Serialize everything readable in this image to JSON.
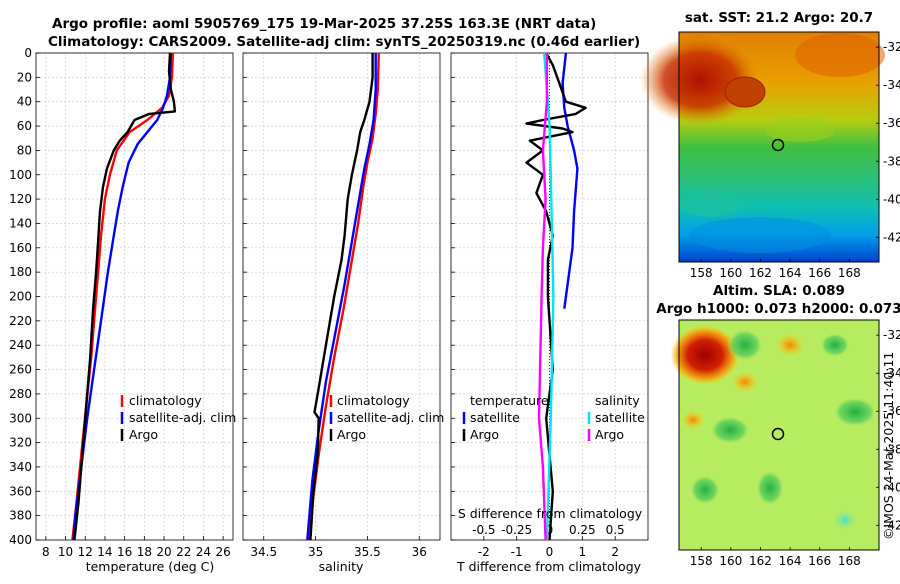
{
  "header": {
    "title_line1": "Argo profile: aoml 5905769_175 19-Mar-2025 37.25S 163.3E (NRT data)",
    "title_line2": "Climatology: CARS2009. Satellite-adj clim: synTS_20250319.nc (0.46d earlier)"
  },
  "colors": {
    "climatology": "#ff0000",
    "satellite": "#0000ff",
    "argo": "#000000",
    "salinity_satellite": "#00e5ee",
    "salinity_argo": "#ff00ff"
  },
  "chart_data": [
    {
      "type": "line",
      "id": "temperature",
      "xlabel": "temperature (deg C)",
      "ylabel": "",
      "xlim": [
        7,
        27
      ],
      "ylim": [
        0,
        400
      ],
      "y_reversed": true,
      "xticks": [
        8,
        10,
        12,
        14,
        16,
        18,
        20,
        22,
        24,
        26
      ],
      "yticks": [
        0,
        20,
        40,
        60,
        80,
        100,
        120,
        140,
        160,
        180,
        200,
        220,
        240,
        260,
        280,
        300,
        320,
        340,
        360,
        380,
        400
      ],
      "grid": true,
      "legend": [
        "climatology",
        "satellite-adj. clim",
        "Argo"
      ],
      "legend_placement": "middle-right",
      "series": [
        {
          "name": "climatology",
          "color": "#ff0000",
          "points": [
            [
              20.9,
              0
            ],
            [
              20.8,
              20
            ],
            [
              20.5,
              35
            ],
            [
              19.8,
              45
            ],
            [
              18.3,
              55
            ],
            [
              16.5,
              65
            ],
            [
              15.2,
              80
            ],
            [
              14.5,
              100
            ],
            [
              14.0,
              120
            ],
            [
              13.6,
              150
            ],
            [
              13.3,
              180
            ],
            [
              13.0,
              210
            ],
            [
              12.6,
              250
            ],
            [
              12.1,
              290
            ],
            [
              11.6,
              330
            ],
            [
              11.1,
              370
            ],
            [
              10.7,
              400
            ]
          ]
        },
        {
          "name": "satellite-adj. clim",
          "color": "#0000ff",
          "points": [
            [
              20.7,
              0
            ],
            [
              20.6,
              20
            ],
            [
              20.3,
              35
            ],
            [
              19.9,
              45
            ],
            [
              19.3,
              55
            ],
            [
              18.3,
              65
            ],
            [
              17.3,
              75
            ],
            [
              16.4,
              90
            ],
            [
              15.8,
              110
            ],
            [
              15.3,
              130
            ],
            [
              14.9,
              150
            ],
            [
              14.3,
              180
            ],
            [
              13.6,
              220
            ],
            [
              12.9,
              260
            ],
            [
              12.2,
              300
            ],
            [
              11.6,
              340
            ],
            [
              11.0,
              380
            ],
            [
              10.8,
              400
            ]
          ]
        },
        {
          "name": "Argo",
          "color": "#000000",
          "points": [
            [
              20.6,
              0
            ],
            [
              20.5,
              15
            ],
            [
              20.7,
              30
            ],
            [
              21.0,
              40
            ],
            [
              21.1,
              48
            ],
            [
              18.5,
              50
            ],
            [
              17.0,
              55
            ],
            [
              16.3,
              65
            ],
            [
              15.5,
              72
            ],
            [
              14.9,
              80
            ],
            [
              14.2,
              95
            ],
            [
              13.8,
              110
            ],
            [
              13.5,
              130
            ],
            [
              13.3,
              155
            ],
            [
              13.1,
              180
            ],
            [
              12.8,
              210
            ],
            [
              12.5,
              250
            ],
            [
              12.1,
              290
            ],
            [
              11.7,
              330
            ],
            [
              11.3,
              370
            ],
            [
              10.9,
              400
            ]
          ]
        }
      ]
    },
    {
      "type": "line",
      "id": "salinity",
      "xlabel": "salinity",
      "ylabel": "",
      "xlim": [
        34.3,
        36.2
      ],
      "ylim": [
        0,
        400
      ],
      "y_reversed": true,
      "xticks": [
        34.5,
        35,
        35.5,
        36
      ],
      "xtick_labels": [
        "34.5",
        "35",
        "35.5",
        "36"
      ],
      "grid": true,
      "legend": [
        "climatology",
        "satellite-adj. clim",
        "Argo"
      ],
      "legend_placement": "middle-right",
      "series": [
        {
          "name": "climatology",
          "color": "#ff0000",
          "points": [
            [
              35.61,
              0
            ],
            [
              35.6,
              30
            ],
            [
              35.58,
              50
            ],
            [
              35.55,
              70
            ],
            [
              35.5,
              90
            ],
            [
              35.46,
              110
            ],
            [
              35.41,
              140
            ],
            [
              35.35,
              170
            ],
            [
              35.27,
              210
            ],
            [
              35.18,
              250
            ],
            [
              35.1,
              290
            ],
            [
              35.03,
              330
            ],
            [
              34.97,
              370
            ],
            [
              34.94,
              400
            ]
          ]
        },
        {
          "name": "satellite-adj. clim",
          "color": "#0000ff",
          "points": [
            [
              35.58,
              0
            ],
            [
              35.58,
              30
            ],
            [
              35.56,
              55
            ],
            [
              35.52,
              75
            ],
            [
              35.47,
              95
            ],
            [
              35.42,
              120
            ],
            [
              35.36,
              150
            ],
            [
              35.28,
              190
            ],
            [
              35.19,
              230
            ],
            [
              35.1,
              270
            ],
            [
              35.03,
              310
            ],
            [
              34.97,
              350
            ],
            [
              34.93,
              390
            ],
            [
              34.92,
              400
            ]
          ]
        },
        {
          "name": "Argo",
          "color": "#000000",
          "points": [
            [
              35.55,
              0
            ],
            [
              35.55,
              20
            ],
            [
              35.52,
              40
            ],
            [
              35.47,
              55
            ],
            [
              35.43,
              65
            ],
            [
              35.4,
              80
            ],
            [
              35.35,
              100
            ],
            [
              35.31,
              120
            ],
            [
              35.28,
              150
            ],
            [
              35.25,
              170
            ],
            [
              35.18,
              200
            ],
            [
              35.1,
              240
            ],
            [
              35.06,
              260
            ],
            [
              35.02,
              280
            ],
            [
              34.99,
              295
            ],
            [
              35.03,
              300
            ],
            [
              35.02,
              330
            ],
            [
              34.98,
              360
            ],
            [
              34.95,
              400
            ]
          ]
        }
      ]
    },
    {
      "type": "line",
      "id": "difference",
      "xlabel": "T difference from climatology",
      "x2label": "S difference from climatology",
      "xlim": [
        -3,
        3
      ],
      "x2lim": [
        -0.75,
        0.75
      ],
      "ylim": [
        0,
        400
      ],
      "y_reversed": true,
      "xticks": [
        -2,
        -1,
        0,
        1,
        2
      ],
      "xtick_labels": [
        "-2",
        "-1",
        "0",
        "1",
        "2"
      ],
      "x2ticks": [
        -0.5,
        -0.25,
        0,
        0.25,
        0.5
      ],
      "x2tick_labels": [
        "-0.5",
        "-0.25",
        "0",
        "0.25",
        "0.5"
      ],
      "grid": true,
      "legend_temperature_title": "temperature",
      "legend_salinity_title": "salinity",
      "legend": [
        "satellite",
        "Argo",
        "satellite",
        "Argo"
      ],
      "series": [
        {
          "name": "temperature satellite",
          "axis": "T",
          "color": "#0000ff",
          "points": [
            [
              0.5,
              0
            ],
            [
              0.4,
              25
            ],
            [
              0.45,
              45
            ],
            [
              0.55,
              60
            ],
            [
              0.75,
              80
            ],
            [
              0.85,
              95
            ],
            [
              0.75,
              130
            ],
            [
              0.7,
              160
            ],
            [
              0.55,
              190
            ],
            [
              0.45,
              210
            ]
          ]
        },
        {
          "name": "temperature Argo",
          "axis": "T",
          "color": "#000000",
          "points": [
            [
              -0.1,
              0
            ],
            [
              0.1,
              10
            ],
            [
              0.3,
              25
            ],
            [
              0.5,
              40
            ],
            [
              1.1,
              45
            ],
            [
              0.8,
              50
            ],
            [
              -0.2,
              55
            ],
            [
              -0.7,
              58
            ],
            [
              0.4,
              62
            ],
            [
              0.7,
              65
            ],
            [
              -0.6,
              72
            ],
            [
              -0.2,
              80
            ],
            [
              -0.7,
              90
            ],
            [
              -0.2,
              100
            ],
            [
              -0.4,
              115
            ],
            [
              -0.1,
              130
            ],
            [
              0.1,
              150
            ],
            [
              -0.05,
              170
            ],
            [
              -0.05,
              200
            ],
            [
              0.1,
              260
            ],
            [
              -0.1,
              300
            ],
            [
              0.1,
              360
            ],
            [
              0.0,
              400
            ]
          ]
        },
        {
          "name": "salinity satellite",
          "axis": "S",
          "color": "#00e5ee",
          "points": [
            [
              -0.04,
              0
            ],
            [
              -0.02,
              30
            ],
            [
              0.0,
              60
            ],
            [
              0.01,
              100
            ],
            [
              0.02,
              150
            ],
            [
              0.03,
              200
            ],
            [
              0.02,
              250
            ],
            [
              0.01,
              300
            ],
            [
              -0.02,
              400
            ]
          ]
        },
        {
          "name": "salinity Argo",
          "axis": "S",
          "color": "#ff00ff",
          "points": [
            [
              -0.02,
              0
            ],
            [
              -0.02,
              40
            ],
            [
              -0.05,
              80
            ],
            [
              -0.03,
              120
            ],
            [
              -0.05,
              160
            ],
            [
              -0.06,
              200
            ],
            [
              -0.07,
              250
            ],
            [
              -0.08,
              300
            ],
            [
              -0.05,
              340
            ],
            [
              -0.03,
              400
            ]
          ]
        }
      ]
    }
  ],
  "maps": {
    "sst": {
      "title": "sat. SST: 21.2 Argo: 20.7",
      "xticks": [
        "158",
        "160",
        "162",
        "164",
        "166",
        "168"
      ],
      "yticks": [
        "-32",
        "-34",
        "-36",
        "-38",
        "-40",
        "-42"
      ]
    },
    "sla": {
      "title_line1": "Altim. SLA: 0.089",
      "title_line2": "Argo h1000: 0.073 h2000: 0.073",
      "xticks": [
        "158",
        "160",
        "162",
        "164",
        "166",
        "168"
      ],
      "yticks": [
        "-32",
        "-34",
        "-36",
        "-38",
        "-40",
        "-42"
      ]
    }
  },
  "footer": {
    "credit": "©IMOS 24-Mar-2025 11:40:11"
  }
}
